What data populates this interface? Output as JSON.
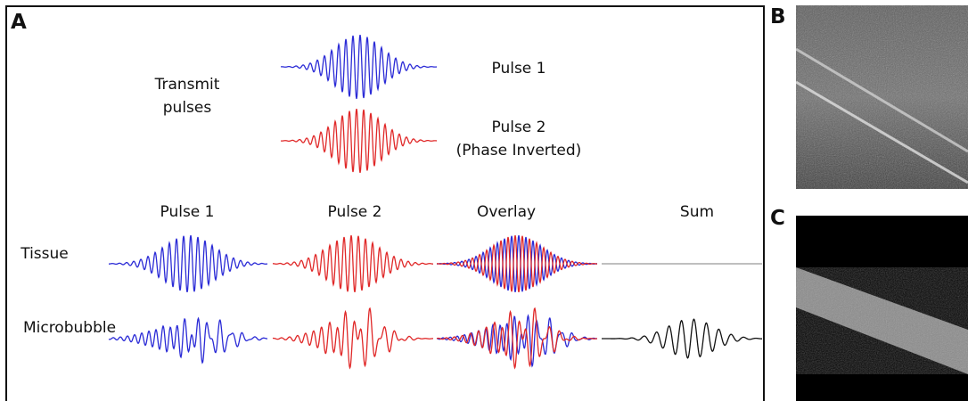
{
  "panels": {
    "a": "A",
    "b": "B",
    "c": "C"
  },
  "transmit": {
    "label": [
      "Transmit",
      "pulses"
    ],
    "pulse_1": "Pulse 1",
    "pulse_2": [
      "Pulse 2",
      "(Phase Inverted)"
    ]
  },
  "columns": [
    "Pulse 1",
    "Pulse 2",
    "Overlay",
    "Sum"
  ],
  "rows": [
    "Tissue",
    "Microbubble"
  ]
}
